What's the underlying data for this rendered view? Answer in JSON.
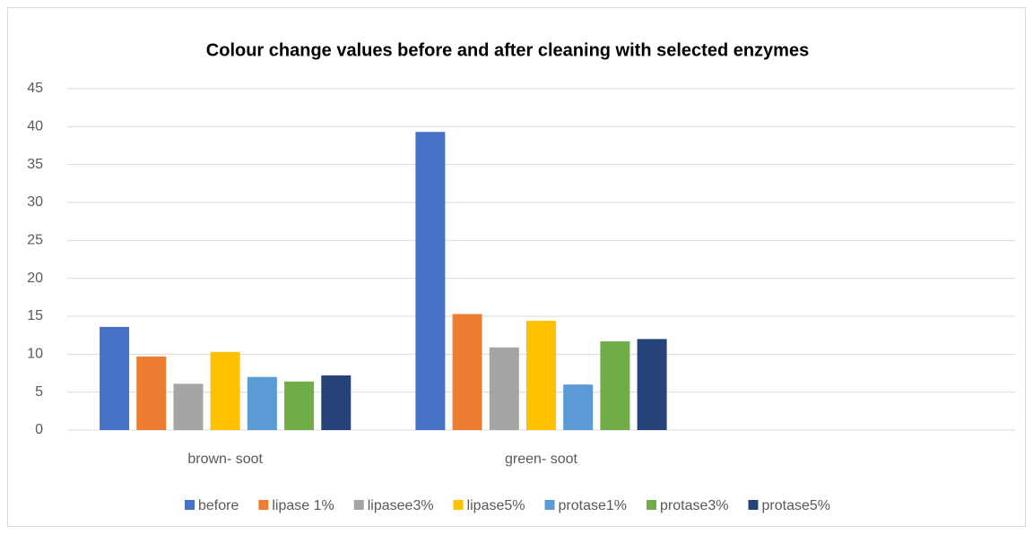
{
  "chart_data": {
    "type": "bar",
    "title": "Colour change values before and after cleaning with selected enzymes",
    "categories": [
      "brown- soot",
      "green- soot",
      null
    ],
    "series": [
      {
        "name": "before",
        "color": "#4472c4",
        "values": [
          13.6,
          39.3,
          null
        ]
      },
      {
        "name": "lipase 1%",
        "color": "#ed7d31",
        "values": [
          9.7,
          15.3,
          null
        ]
      },
      {
        "name": "lipasee3%",
        "color": "#a5a5a5",
        "values": [
          6.1,
          10.9,
          null
        ]
      },
      {
        "name": "lipase5%",
        "color": "#ffc000",
        "values": [
          10.3,
          14.4,
          null
        ]
      },
      {
        "name": "protase1%",
        "color": "#5b9bd5",
        "values": [
          7.0,
          6.0,
          null
        ]
      },
      {
        "name": "protase3%",
        "color": "#70ad47",
        "values": [
          6.4,
          11.7,
          null
        ]
      },
      {
        "name": "protase5%",
        "color": "#264478",
        "values": [
          7.2,
          12.0,
          null
        ]
      }
    ],
    "ylim": [
      0,
      45
    ],
    "yticks": [
      0,
      5,
      10,
      15,
      20,
      25,
      30,
      35,
      40,
      45
    ],
    "grid": true,
    "legend": "bottom"
  }
}
